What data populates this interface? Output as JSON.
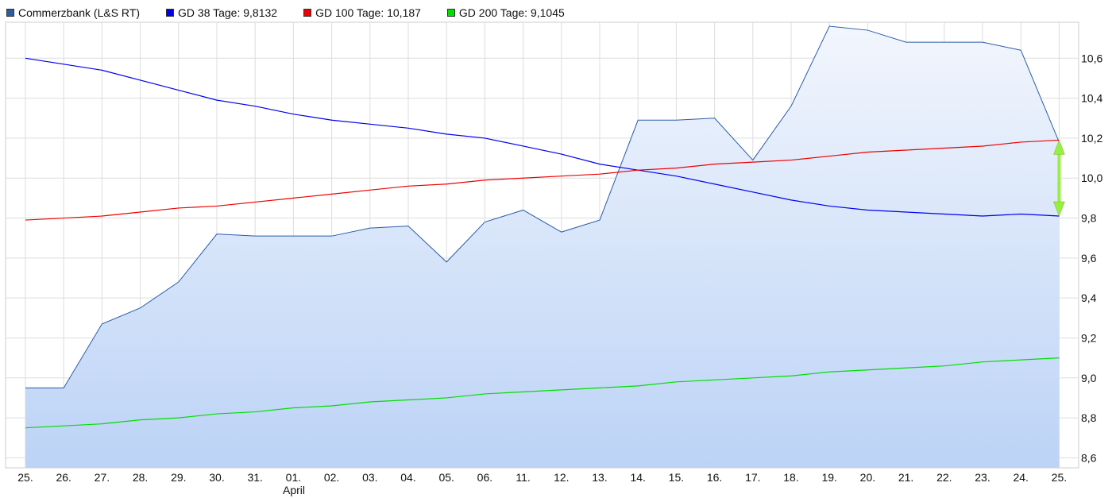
{
  "chart_data": {
    "type": "area",
    "legend": [
      {
        "label": "Commerzbank (L&S RT)",
        "color": "#2a5ca8"
      },
      {
        "label": "GD 38 Tage: 9,8132",
        "color": "#0000ee"
      },
      {
        "label": "GD 100 Tage: 10,187",
        "color": "#ee0000"
      },
      {
        "label": "GD 200 Tage: 9,1045",
        "color": "#00dd00"
      }
    ],
    "categories": [
      "25.",
      "26.",
      "27.",
      "28.",
      "29.",
      "30.",
      "31.",
      "01.",
      "02.",
      "03.",
      "04.",
      "05.",
      "06.",
      "11.",
      "12.",
      "13.",
      "14.",
      "15.",
      "16.",
      "17.",
      "18.",
      "19.",
      "20.",
      "21.",
      "22.",
      "23.",
      "24.",
      "25."
    ],
    "month_label": "April",
    "ylim": [
      8.55,
      10.78
    ],
    "yticks": [
      "8,6",
      "8,8",
      "9,0",
      "9,2",
      "9,4",
      "9,6",
      "9,8",
      "10,0",
      "10,2",
      "10,4",
      "10,6"
    ],
    "ytick_values": [
      8.6,
      8.8,
      9.0,
      9.2,
      9.4,
      9.6,
      9.8,
      10.0,
      10.2,
      10.4,
      10.6
    ],
    "series": [
      {
        "name": "Commerzbank (L&S RT)",
        "color": "#2a5ca8",
        "values": [
          8.95,
          8.95,
          9.27,
          9.35,
          9.48,
          9.72,
          9.71,
          9.71,
          9.71,
          9.75,
          9.76,
          9.58,
          9.78,
          9.84,
          9.73,
          9.79,
          10.29,
          10.29,
          10.3,
          10.09,
          10.36,
          10.76,
          10.74,
          10.68,
          10.68,
          10.68,
          10.64,
          10.18
        ]
      },
      {
        "name": "GD 38 Tage: 9,8132",
        "color": "#0000ee",
        "values": [
          10.6,
          10.57,
          10.54,
          10.49,
          10.44,
          10.39,
          10.36,
          10.32,
          10.29,
          10.27,
          10.25,
          10.22,
          10.2,
          10.16,
          10.12,
          10.07,
          10.04,
          10.01,
          9.97,
          9.93,
          9.89,
          9.86,
          9.84,
          9.83,
          9.82,
          9.81,
          9.82,
          9.81
        ]
      },
      {
        "name": "GD 100 Tage: 10,187",
        "color": "#ee0000",
        "values": [
          9.79,
          9.8,
          9.81,
          9.83,
          9.85,
          9.86,
          9.88,
          9.9,
          9.92,
          9.94,
          9.96,
          9.97,
          9.99,
          10.0,
          10.01,
          10.02,
          10.04,
          10.05,
          10.07,
          10.08,
          10.09,
          10.11,
          10.13,
          10.14,
          10.15,
          10.16,
          10.18,
          10.19
        ]
      },
      {
        "name": "GD 200 Tage: 9,1045",
        "color": "#00dd00",
        "values": [
          8.75,
          8.76,
          8.77,
          8.79,
          8.8,
          8.82,
          8.83,
          8.85,
          8.86,
          8.88,
          8.89,
          8.9,
          8.92,
          8.93,
          8.94,
          8.95,
          8.96,
          8.98,
          8.99,
          9.0,
          9.01,
          9.03,
          9.04,
          9.05,
          9.06,
          9.08,
          9.09,
          9.1
        ]
      }
    ],
    "annotation": {
      "type": "double-arrow",
      "from": 10.19,
      "to": 9.81,
      "color": "#99ee44"
    },
    "grid": true
  }
}
